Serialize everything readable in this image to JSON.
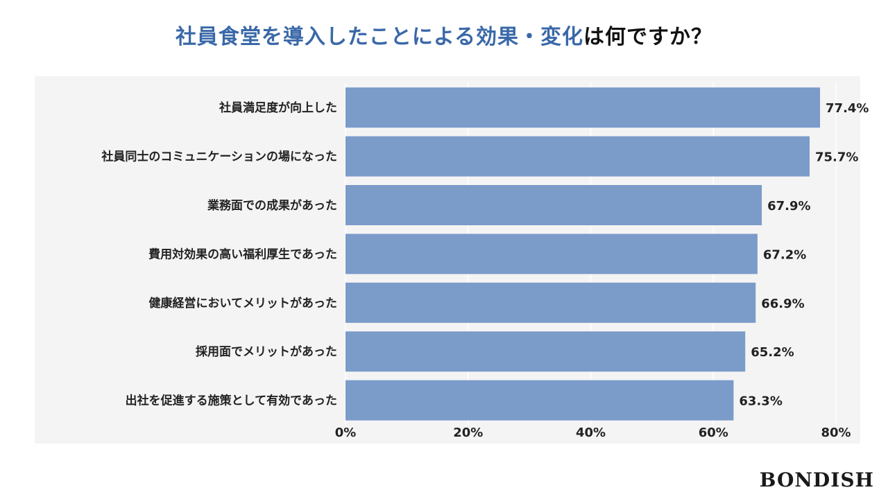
{
  "title": {
    "highlight": "社員食堂を導入したことによる効果・変化",
    "rest": "は何ですか？"
  },
  "brand": "BONDISH",
  "colors": {
    "bar": "#7b9bc9",
    "title_accent": "#3a68a8",
    "panel": "#f4f4f4",
    "grid": "#ffffff"
  },
  "chart_data": {
    "type": "bar",
    "orientation": "horizontal",
    "categories": [
      "社員満足度が向上した",
      "社員同士のコミュニケーションの場になった",
      "業務面での成果があった",
      "費用対効果の高い福利厚生であった",
      "健康経営においてメリットがあった",
      "採用面でメリットがあった",
      "出社を促進する施策として有効であった"
    ],
    "values": [
      77.4,
      75.7,
      67.9,
      67.2,
      66.9,
      65.2,
      63.3
    ],
    "value_labels": [
      "77.4%",
      "75.7%",
      "67.9%",
      "67.2%",
      "66.9%",
      "65.2%",
      "63.3%"
    ],
    "x_ticks": [
      "0%",
      "20%",
      "40%",
      "60%",
      "80%"
    ],
    "xlim": [
      0,
      80
    ],
    "grid": true
  }
}
